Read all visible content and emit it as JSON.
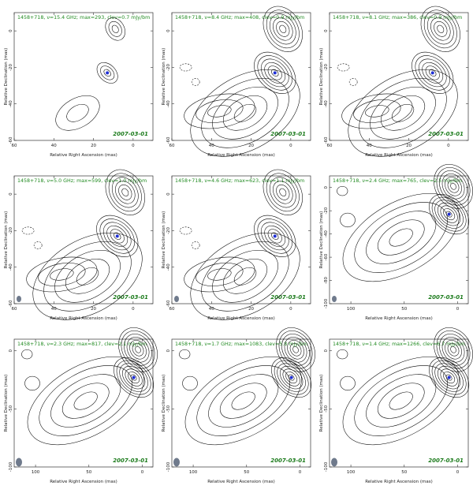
{
  "figure": {
    "colors": {
      "title": "#228b22",
      "date": "#1a7a1a",
      "core": "#1f2fd6",
      "beam": "#6f7a8c",
      "contour": "#000000"
    }
  },
  "chart_data": [
    {
      "type": "contour",
      "title": "1458+718, ν=15.4 GHz; max=293, clev=0.7 mJy/bm",
      "date": "2007-03-01",
      "xlabel": "Relative Right Ascension (mas)",
      "ylabel": "Relative Declination (mas)",
      "xlim": [
        60,
        -10
      ],
      "ylim": [
        -60,
        10
      ],
      "xticks": [
        60,
        40,
        20,
        0
      ],
      "yticks": [
        0,
        -20,
        -40,
        -60
      ],
      "core": [
        13,
        -23
      ]
    },
    {
      "type": "contour",
      "title": "1458+718, ν=8.4 GHz; max=408, clev=0.9 mJy/bm",
      "date": "2007-03-01",
      "xlabel": "Relative Right Ascension (mas)",
      "ylabel": "Relative Declination (mas)",
      "xlim": [
        60,
        -10
      ],
      "ylim": [
        -60,
        10
      ],
      "xticks": [
        60,
        40,
        20,
        0
      ],
      "yticks": [
        0,
        -20,
        -40,
        -60
      ],
      "core": [
        8,
        -23
      ]
    },
    {
      "type": "contour",
      "title": "1458+718, ν=8.1 GHz; max=386, clev=0.9 mJy/bm",
      "date": "2007-03-01",
      "xlabel": "Relative Right Ascension (mas)",
      "ylabel": "Relative Declination (mas)",
      "xlim": [
        60,
        -10
      ],
      "ylim": [
        -60,
        10
      ],
      "xticks": [
        60,
        40,
        20,
        0
      ],
      "yticks": [
        0,
        -20,
        -40,
        -60
      ],
      "core": [
        8,
        -23
      ]
    },
    {
      "type": "contour",
      "title": "1458+718, ν=5.0 GHz; max=599, clev=1.0 mJy/bm",
      "date": "2007-03-01",
      "xlabel": "Relative Right Ascension (mas)",
      "ylabel": "Relative Declination (mas)",
      "xlim": [
        60,
        -10
      ],
      "ylim": [
        -60,
        10
      ],
      "xticks": [
        60,
        40,
        20,
        0
      ],
      "yticks": [
        0,
        -20,
        -40,
        -60
      ],
      "core": [
        8,
        -23
      ]
    },
    {
      "type": "contour",
      "title": "1458+718, ν=4.6 GHz; max=623, clev=1.1 mJy/bm",
      "date": "2007-03-01",
      "xlabel": "Relative Right Ascension (mas)",
      "ylabel": "Relative Declination (mas)",
      "xlim": [
        60,
        -10
      ],
      "ylim": [
        -60,
        10
      ],
      "xticks": [
        60,
        40,
        20,
        0
      ],
      "yticks": [
        0,
        -20,
        -40,
        -60
      ],
      "core": [
        8,
        -23
      ]
    },
    {
      "type": "contour",
      "title": "1458+718, ν=2.4 GHz; max=765, clev=2.5 mJy/bm",
      "date": "2007-03-01",
      "xlabel": "Relative Right Ascension (mas)",
      "ylabel": "Relative Declination (mas)",
      "xlim": [
        120,
        -10
      ],
      "ylim": [
        -100,
        10
      ],
      "xticks": [
        100,
        50,
        0
      ],
      "yticks": [
        0,
        -20,
        -40,
        -60,
        -80,
        -100
      ],
      "core": [
        8,
        -23
      ]
    },
    {
      "type": "contour",
      "title": "1458+718, ν=2.3 GHz; max=817, clev=2.1 mJy/bm",
      "date": "2007-03-01",
      "xlabel": "Relative Right Ascension (mas)",
      "ylabel": "Relative Declination (mas)",
      "xlim": [
        120,
        -10
      ],
      "ylim": [
        -100,
        10
      ],
      "xticks": [
        100,
        50,
        0
      ],
      "yticks": [
        0,
        -50,
        -100
      ],
      "core": [
        8,
        -23
      ]
    },
    {
      "type": "contour",
      "title": "1458+718, ν=1.7 GHz; max=1083, clev=5.8 mJy/bm",
      "date": "2007-03-01",
      "xlabel": "Relative Right Ascension (mas)",
      "ylabel": "Relative Declination (mas)",
      "xlim": [
        120,
        -10
      ],
      "ylim": [
        -100,
        10
      ],
      "xticks": [
        100,
        50,
        0
      ],
      "yticks": [
        0,
        -50,
        -100
      ],
      "core": [
        8,
        -23
      ]
    },
    {
      "type": "contour",
      "title": "1458+718, ν=1.4 GHz; max=1266, clev=6.7 mJy/bm",
      "date": "2007-03-01",
      "xlabel": "Relative Right Ascension (mas)",
      "ylabel": "Relative Declination (mas)",
      "xlim": [
        120,
        -10
      ],
      "ylim": [
        -100,
        10
      ],
      "xticks": [
        100,
        50,
        0
      ],
      "yticks": [
        0,
        -50,
        -100
      ],
      "core": [
        8,
        -23
      ]
    }
  ]
}
